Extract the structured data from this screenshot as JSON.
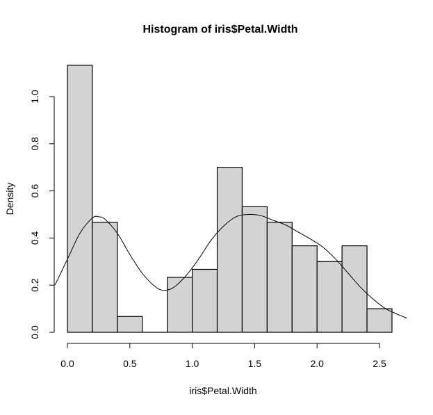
{
  "chart_data": {
    "type": "bar",
    "subtype": "histogram",
    "title": "Histogram of iris$Petal.Width",
    "xlabel": "iris$Petal.Width",
    "ylabel": "Density",
    "xlim": [
      -0.1,
      2.75
    ],
    "ylim": [
      0,
      1.13
    ],
    "x_ticks": [
      0.0,
      0.5,
      1.0,
      1.5,
      2.0,
      2.5
    ],
    "x_tick_labels": [
      "0.0",
      "0.5",
      "1.0",
      "1.5",
      "2.0",
      "2.5"
    ],
    "y_ticks": [
      0.0,
      0.2,
      0.4,
      0.6,
      0.8,
      1.0
    ],
    "y_tick_labels": [
      "0.0",
      "0.2",
      "0.4",
      "0.6",
      "0.8",
      "1.0"
    ],
    "grid": false,
    "bins": [
      {
        "start": 0.0,
        "end": 0.2,
        "density": 1.133
      },
      {
        "start": 0.2,
        "end": 0.4,
        "density": 0.467
      },
      {
        "start": 0.4,
        "end": 0.6,
        "density": 0.067
      },
      {
        "start": 0.6,
        "end": 0.8,
        "density": 0.0
      },
      {
        "start": 0.8,
        "end": 1.0,
        "density": 0.233
      },
      {
        "start": 1.0,
        "end": 1.2,
        "density": 0.267
      },
      {
        "start": 1.2,
        "end": 1.4,
        "density": 0.7
      },
      {
        "start": 1.4,
        "end": 1.6,
        "density": 0.533
      },
      {
        "start": 1.6,
        "end": 1.8,
        "density": 0.467
      },
      {
        "start": 1.8,
        "end": 2.0,
        "density": 0.367
      },
      {
        "start": 2.0,
        "end": 2.2,
        "density": 0.3
      },
      {
        "start": 2.2,
        "end": 2.4,
        "density": 0.367
      },
      {
        "start": 2.4,
        "end": 2.6,
        "density": 0.1
      }
    ],
    "density_curve": {
      "x": [
        -0.1,
        0.0,
        0.1,
        0.2,
        0.25,
        0.3,
        0.4,
        0.5,
        0.6,
        0.7,
        0.77,
        0.85,
        0.95,
        1.05,
        1.15,
        1.25,
        1.35,
        1.45,
        1.55,
        1.65,
        1.75,
        1.85,
        1.95,
        2.05,
        2.15,
        2.25,
        2.35,
        2.45,
        2.55,
        2.65,
        2.72
      ],
      "y": [
        0.2,
        0.31,
        0.42,
        0.485,
        0.49,
        0.48,
        0.42,
        0.33,
        0.25,
        0.195,
        0.178,
        0.19,
        0.24,
        0.31,
        0.39,
        0.45,
        0.49,
        0.5,
        0.495,
        0.475,
        0.455,
        0.425,
        0.395,
        0.36,
        0.31,
        0.25,
        0.19,
        0.14,
        0.1,
        0.075,
        0.06
      ]
    },
    "colors": {
      "bar_fill": "#d3d3d3",
      "bar_stroke": "#000000",
      "curve": "#000000",
      "background": "#ffffff"
    }
  }
}
